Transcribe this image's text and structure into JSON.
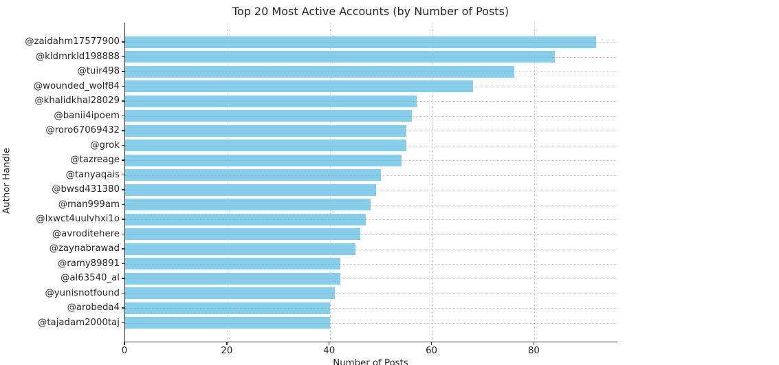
{
  "chart_data": {
    "type": "bar",
    "orientation": "horizontal",
    "title": "Top 20 Most Active Accounts (by Number of Posts)",
    "xlabel": "Number of Posts",
    "ylabel": "Author Handle",
    "categories": [
      "@zaidahm17577900",
      "@kldmrkld198888",
      "@tuir498",
      "@wounded_wolf84",
      "@khalidkhal28029",
      "@banii4ipoem",
      "@roro67069432",
      "@grok",
      "@tazreage",
      "@tanyaqais",
      "@bwsd431380",
      "@man999am",
      "@lxwct4uulvhxi1o",
      "@avroditehere",
      "@zaynabrawad",
      "@ramy89891",
      "@al63540_al",
      "@yunisnotfound",
      "@arobeda4",
      "@tajadam2000taj"
    ],
    "values": [
      92,
      84,
      76,
      68,
      57,
      56,
      55,
      55,
      54,
      50,
      49,
      48,
      47,
      46,
      45,
      42,
      42,
      41,
      40,
      40
    ],
    "xticks": [
      0,
      20,
      40,
      60,
      80
    ],
    "xlim": [
      0,
      96.2
    ],
    "grid": true,
    "grid_style": "dotted",
    "legend": "none",
    "colors": {
      "bar_fill": "#87CEEB",
      "axis": "#333333",
      "grid": "#cfcfcf",
      "text": "#262626",
      "background": "#ffffff"
    }
  }
}
